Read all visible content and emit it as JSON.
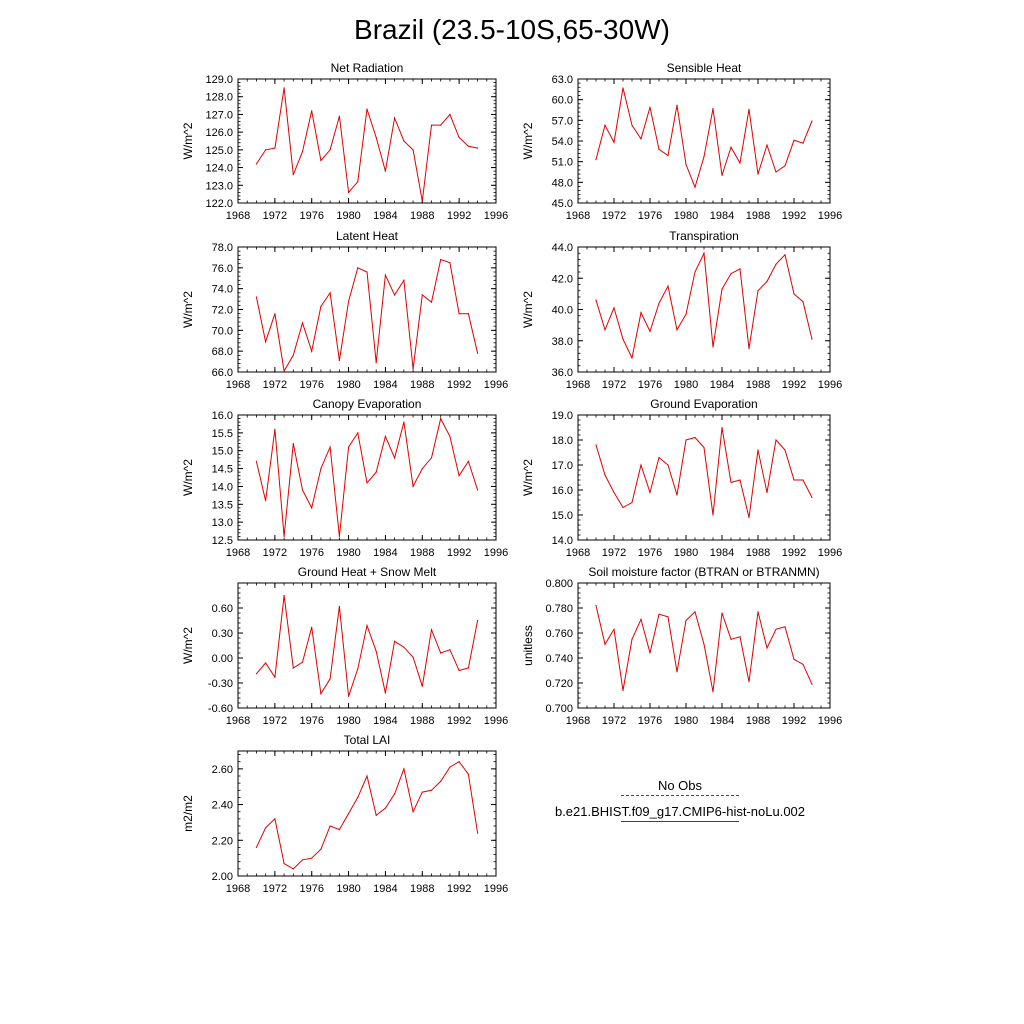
{
  "page": {
    "title": "Brazil (23.5-10S,65-30W)"
  },
  "legend": {
    "obs_label": "No Obs",
    "obs_color": "#3a3ac8",
    "model_label": "b.e21.BHIST.f09_g17.CMIP6-hist-noLu.002",
    "model_color": "#e00000"
  },
  "chart_data": [
    {
      "type": "line",
      "title": "Net Radiation",
      "xlabel": "",
      "ylabel": "W/m^2",
      "xlim": [
        1968,
        1996
      ],
      "ylim": [
        122.0,
        129.0
      ],
      "xticks": [
        1968,
        1972,
        1976,
        1980,
        1984,
        1988,
        1992,
        1996
      ],
      "yticks": [
        "122.0",
        "123.0",
        "124.0",
        "125.0",
        "126.0",
        "127.0",
        "128.0",
        "129.0"
      ],
      "x": [
        1970,
        1971,
        1972,
        1973,
        1974,
        1975,
        1976,
        1977,
        1978,
        1979,
        1980,
        1981,
        1982,
        1983,
        1984,
        1985,
        1986,
        1987,
        1988,
        1989,
        1990,
        1991,
        1992,
        1993,
        1994
      ],
      "series": [
        {
          "values": [
            124.2,
            125.0,
            125.1,
            128.5,
            123.6,
            124.9,
            127.2,
            124.4,
            125.0,
            126.9,
            122.6,
            123.2,
            127.3,
            125.7,
            123.8,
            126.8,
            125.5,
            125.0,
            122.1,
            126.4,
            126.4,
            127.0,
            125.7,
            125.2,
            125.1
          ]
        }
      ]
    },
    {
      "type": "line",
      "title": "Sensible Heat",
      "xlabel": "",
      "ylabel": "W/m^2",
      "xlim": [
        1968,
        1996
      ],
      "ylim": [
        45.0,
        63.0
      ],
      "xticks": [
        1968,
        1972,
        1976,
        1980,
        1984,
        1988,
        1992,
        1996
      ],
      "yticks": [
        "45.0",
        "48.0",
        "51.0",
        "54.0",
        "57.0",
        "60.0",
        "63.0"
      ],
      "x": [
        1970,
        1971,
        1972,
        1973,
        1974,
        1975,
        1976,
        1977,
        1978,
        1979,
        1980,
        1981,
        1982,
        1983,
        1984,
        1985,
        1986,
        1987,
        1988,
        1989,
        1990,
        1991,
        1992,
        1993,
        1994
      ],
      "series": [
        {
          "values": [
            51.3,
            56.3,
            53.8,
            61.7,
            56.3,
            54.3,
            58.9,
            52.8,
            51.9,
            59.2,
            50.6,
            47.3,
            51.7,
            58.7,
            49.0,
            53.1,
            50.8,
            58.6,
            49.2,
            53.4,
            49.5,
            50.4,
            54.1,
            53.7,
            56.9
          ]
        }
      ]
    },
    {
      "type": "line",
      "title": "Latent Heat",
      "xlabel": "",
      "ylabel": "W/m^2",
      "xlim": [
        1968,
        1996
      ],
      "ylim": [
        66.0,
        78.0
      ],
      "xticks": [
        1968,
        1972,
        1976,
        1980,
        1984,
        1988,
        1992,
        1996
      ],
      "yticks": [
        "66.0",
        "68.0",
        "70.0",
        "72.0",
        "74.0",
        "76.0",
        "78.0"
      ],
      "x": [
        1970,
        1971,
        1972,
        1973,
        1974,
        1975,
        1976,
        1977,
        1978,
        1979,
        1980,
        1981,
        1982,
        1983,
        1984,
        1985,
        1986,
        1987,
        1988,
        1989,
        1990,
        1991,
        1992,
        1993,
        1994
      ],
      "series": [
        {
          "values": [
            73.2,
            68.9,
            71.6,
            66.1,
            67.6,
            70.7,
            68.0,
            72.3,
            73.6,
            67.1,
            72.8,
            76.0,
            75.6,
            66.9,
            75.3,
            73.4,
            74.8,
            66.3,
            73.4,
            72.7,
            76.8,
            76.5,
            71.6,
            71.6,
            67.8
          ]
        }
      ]
    },
    {
      "type": "line",
      "title": "Transpiration",
      "xlabel": "",
      "ylabel": "W/m^2",
      "xlim": [
        1968,
        1996
      ],
      "ylim": [
        36.0,
        44.0
      ],
      "xticks": [
        1968,
        1972,
        1976,
        1980,
        1984,
        1988,
        1992,
        1996
      ],
      "yticks": [
        "36.0",
        "38.0",
        "40.0",
        "42.0",
        "44.0"
      ],
      "x": [
        1970,
        1971,
        1972,
        1973,
        1974,
        1975,
        1976,
        1977,
        1978,
        1979,
        1980,
        1981,
        1982,
        1983,
        1984,
        1985,
        1986,
        1987,
        1988,
        1989,
        1990,
        1991,
        1992,
        1993,
        1994
      ],
      "series": [
        {
          "values": [
            40.6,
            38.7,
            40.1,
            38.1,
            36.9,
            39.8,
            38.6,
            40.4,
            41.5,
            38.7,
            39.7,
            42.4,
            43.6,
            37.6,
            41.3,
            42.3,
            42.6,
            37.5,
            41.2,
            41.8,
            42.9,
            43.5,
            41.0,
            40.5,
            38.1
          ]
        }
      ]
    },
    {
      "type": "line",
      "title": "Canopy Evaporation",
      "xlabel": "",
      "ylabel": "W/m^2",
      "xlim": [
        1968,
        1996
      ],
      "ylim": [
        12.5,
        16.0
      ],
      "xticks": [
        1968,
        1972,
        1976,
        1980,
        1984,
        1988,
        1992,
        1996
      ],
      "yticks": [
        "12.5",
        "13.0",
        "13.5",
        "14.0",
        "14.5",
        "15.0",
        "15.5",
        "16.0"
      ],
      "x": [
        1970,
        1971,
        1972,
        1973,
        1974,
        1975,
        1976,
        1977,
        1978,
        1979,
        1980,
        1981,
        1982,
        1983,
        1984,
        1985,
        1986,
        1987,
        1988,
        1989,
        1990,
        1991,
        1992,
        1993,
        1994
      ],
      "series": [
        {
          "values": [
            14.7,
            13.6,
            15.6,
            12.6,
            15.2,
            13.9,
            13.4,
            14.5,
            15.1,
            12.6,
            15.1,
            15.5,
            14.1,
            14.4,
            15.4,
            14.8,
            15.8,
            14.0,
            14.5,
            14.8,
            15.9,
            15.4,
            14.3,
            14.7,
            13.9
          ]
        }
      ]
    },
    {
      "type": "line",
      "title": "Ground Evaporation",
      "xlabel": "",
      "ylabel": "W/m^2",
      "xlim": [
        1968,
        1996
      ],
      "ylim": [
        14.0,
        19.0
      ],
      "xticks": [
        1968,
        1972,
        1976,
        1980,
        1984,
        1988,
        1992,
        1996
      ],
      "yticks": [
        "14.0",
        "15.0",
        "16.0",
        "17.0",
        "18.0",
        "19.0"
      ],
      "x": [
        1970,
        1971,
        1972,
        1973,
        1974,
        1975,
        1976,
        1977,
        1978,
        1979,
        1980,
        1981,
        1982,
        1983,
        1984,
        1985,
        1986,
        1987,
        1988,
        1989,
        1990,
        1991,
        1992,
        1993,
        1994
      ],
      "series": [
        {
          "values": [
            17.8,
            16.6,
            15.9,
            15.3,
            15.5,
            17.0,
            15.9,
            17.3,
            17.0,
            15.8,
            18.0,
            18.1,
            17.7,
            15.0,
            18.5,
            16.3,
            16.4,
            14.9,
            17.6,
            15.9,
            18.0,
            17.6,
            16.4,
            16.4,
            15.7
          ]
        }
      ]
    },
    {
      "type": "line",
      "title": "Ground Heat + Snow Melt",
      "xlabel": "",
      "ylabel": "W/m^2",
      "xlim": [
        1968,
        1996
      ],
      "ylim": [
        -0.6,
        0.9
      ],
      "xticks": [
        1968,
        1972,
        1976,
        1980,
        1984,
        1988,
        1992,
        1996
      ],
      "yticks": [
        "-0.60",
        "-0.30",
        "0.00",
        "0.30",
        "0.60"
      ],
      "x": [
        1970,
        1971,
        1972,
        1973,
        1974,
        1975,
        1976,
        1977,
        1978,
        1979,
        1980,
        1981,
        1982,
        1983,
        1984,
        1985,
        1986,
        1987,
        1988,
        1989,
        1990,
        1991,
        1992,
        1993,
        1994
      ],
      "series": [
        {
          "values": [
            -0.19,
            -0.06,
            -0.23,
            0.75,
            -0.12,
            -0.05,
            0.37,
            -0.43,
            -0.25,
            0.62,
            -0.46,
            -0.13,
            0.39,
            0.08,
            -0.42,
            0.2,
            0.13,
            0.01,
            -0.34,
            0.34,
            0.06,
            0.1,
            -0.15,
            -0.12,
            0.45
          ]
        }
      ]
    },
    {
      "type": "line",
      "title": "Soil moisture factor (BTRAN or BTRANMN)",
      "xlabel": "",
      "ylabel": "unitless",
      "xlim": [
        1968,
        1996
      ],
      "ylim": [
        0.7,
        0.8
      ],
      "xticks": [
        1968,
        1972,
        1976,
        1980,
        1984,
        1988,
        1992,
        1996
      ],
      "yticks": [
        "0.700",
        "0.720",
        "0.740",
        "0.760",
        "0.780",
        "0.800"
      ],
      "x": [
        1970,
        1971,
        1972,
        1973,
        1974,
        1975,
        1976,
        1977,
        1978,
        1979,
        1980,
        1981,
        1982,
        1983,
        1984,
        1985,
        1986,
        1987,
        1988,
        1989,
        1990,
        1991,
        1992,
        1993,
        1994
      ],
      "series": [
        {
          "values": [
            0.782,
            0.751,
            0.763,
            0.714,
            0.755,
            0.771,
            0.744,
            0.775,
            0.773,
            0.729,
            0.77,
            0.777,
            0.751,
            0.713,
            0.776,
            0.755,
            0.757,
            0.721,
            0.777,
            0.748,
            0.763,
            0.765,
            0.739,
            0.735,
            0.719
          ]
        }
      ]
    },
    {
      "type": "line",
      "title": "Total LAI",
      "xlabel": "",
      "ylabel": "m2/m2",
      "xlim": [
        1968,
        1996
      ],
      "ylim": [
        2.0,
        2.7
      ],
      "xticks": [
        1968,
        1972,
        1976,
        1980,
        1984,
        1988,
        1992,
        1996
      ],
      "yticks": [
        "2.00",
        "2.20",
        "2.40",
        "2.60"
      ],
      "x": [
        1970,
        1971,
        1972,
        1973,
        1974,
        1975,
        1976,
        1977,
        1978,
        1979,
        1980,
        1981,
        1982,
        1983,
        1984,
        1985,
        1986,
        1987,
        1988,
        1989,
        1990,
        1991,
        1992,
        1993,
        1994
      ],
      "series": [
        {
          "values": [
            2.16,
            2.27,
            2.32,
            2.07,
            2.04,
            2.09,
            2.1,
            2.15,
            2.28,
            2.26,
            2.35,
            2.44,
            2.56,
            2.34,
            2.38,
            2.46,
            2.6,
            2.36,
            2.47,
            2.48,
            2.53,
            2.61,
            2.64,
            2.57,
            2.24
          ]
        }
      ]
    }
  ]
}
